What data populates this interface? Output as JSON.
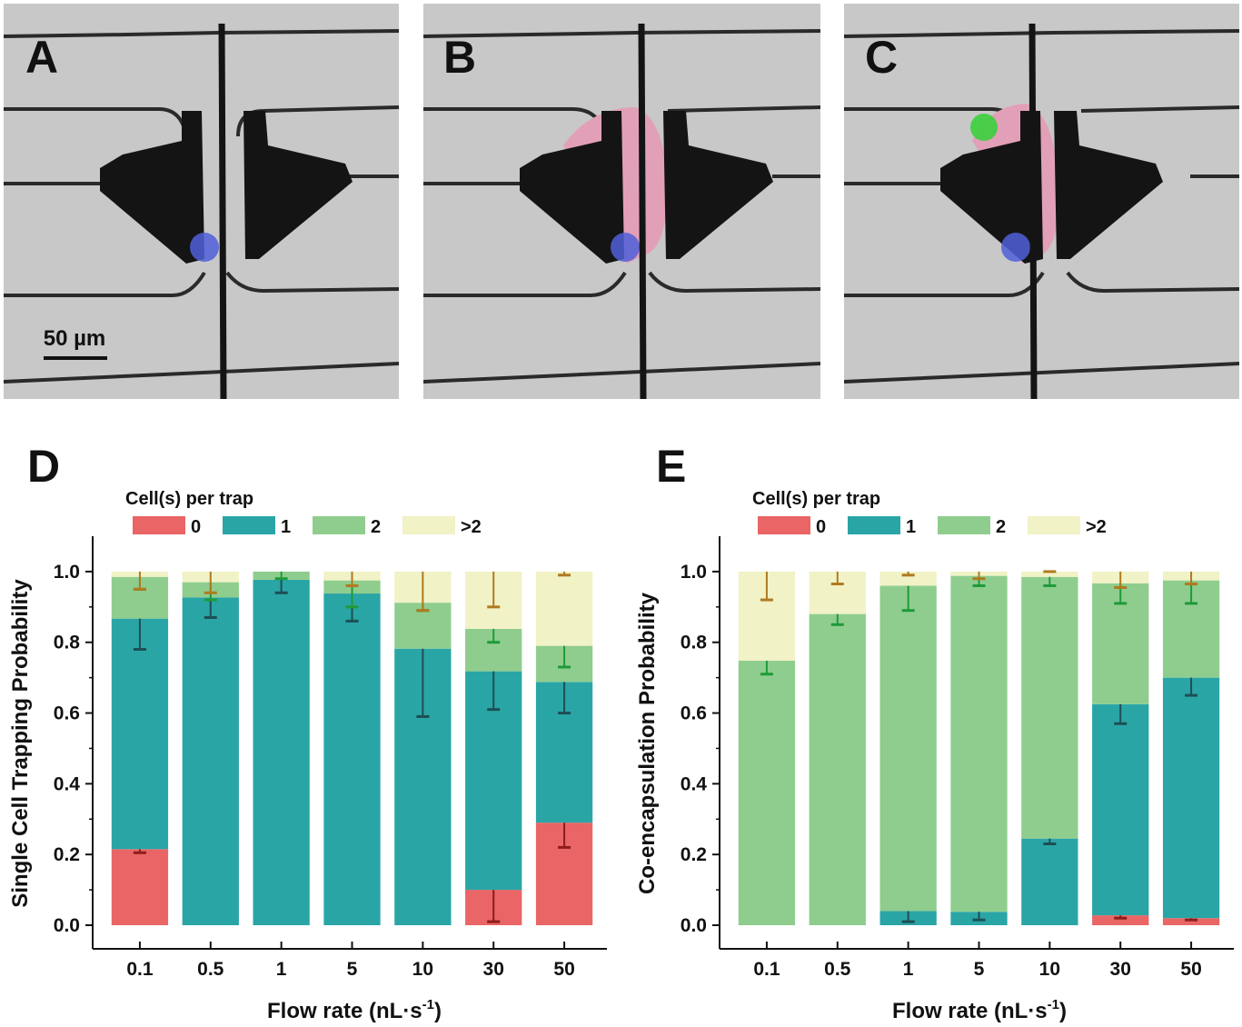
{
  "images": [
    {
      "letter": "A",
      "scale_bar_label": "50 µm"
    },
    {
      "letter": "B"
    },
    {
      "letter": "C"
    }
  ],
  "colors": {
    "c0": "#e96566",
    "c1": "#2aa5a6",
    "c2": "#8fcd8e",
    "c3": "#f1f2c6",
    "err0": "#8e1c1c",
    "err1": "#1d4f55",
    "err2": "#1f9a3a",
    "err3": "#b07a20",
    "micro_bg": "#c8c8c8",
    "micro_dark": "#141414",
    "pink": "#e2a0b8",
    "blue_cell": "#4f5fd8",
    "green_cell": "#3ccf3c"
  },
  "chart_data": [
    {
      "type": "bar",
      "stacked": true,
      "panel_letter": "D",
      "legend_title": "Cell(s) per trap",
      "categories": [
        "0.1",
        "0.5",
        "1",
        "5",
        "10",
        "30",
        "50"
      ],
      "xlabel": "Flow rate (nL·s",
      "xlabel_sup": "-1",
      "xlabel_end": ")",
      "ylabel": "Single Cell Trapping Probability",
      "ylim": [
        0,
        1.1
      ],
      "yticks": [
        "0.0",
        "0.2",
        "0.4",
        "0.6",
        "0.8",
        "1.0"
      ],
      "legend_position": "top",
      "series": [
        {
          "name": "0",
          "values": [
            0.215,
            0,
            0,
            0,
            0,
            0.1,
            0.29
          ],
          "err": [
            0.205,
            null,
            null,
            null,
            null,
            0.01,
            0.22
          ]
        },
        {
          "name": "1",
          "values": [
            0.652,
            0.927,
            0.977,
            0.938,
            0.782,
            0.618,
            0.398
          ],
          "err": [
            0.78,
            0.87,
            0.94,
            0.86,
            0.59,
            0.61,
            0.6
          ]
        },
        {
          "name": "2",
          "values": [
            0.118,
            0.043,
            0.023,
            0.037,
            0.13,
            0.12,
            0.102
          ],
          "err": [
            0.95,
            0.92,
            0.98,
            0.9,
            0.89,
            0.8,
            0.73
          ]
        },
        {
          "name": ">2",
          "values": [
            0.015,
            0.03,
            0,
            0.025,
            0.088,
            0.162,
            0.21
          ],
          "err": [
            0.95,
            0.94,
            null,
            0.96,
            0.89,
            0.9,
            0.99
          ]
        }
      ]
    },
    {
      "type": "bar",
      "stacked": true,
      "panel_letter": "E",
      "legend_title": "Cell(s) per trap",
      "categories": [
        "0.1",
        "0.5",
        "1",
        "5",
        "10",
        "30",
        "50"
      ],
      "xlabel": "Flow rate (nL·s",
      "xlabel_sup": "-1",
      "xlabel_end": ")",
      "ylabel": "Co-encapsulation Probability",
      "ylim": [
        0,
        1.1
      ],
      "yticks": [
        "0.0",
        "0.2",
        "0.4",
        "0.6",
        "0.8",
        "1.0"
      ],
      "legend_position": "top",
      "series": [
        {
          "name": "0",
          "values": [
            0,
            0,
            0,
            0,
            0,
            0.028,
            0.02
          ],
          "err": [
            null,
            null,
            null,
            null,
            null,
            0.02,
            0.015
          ]
        },
        {
          "name": "1",
          "values": [
            0,
            0,
            0.04,
            0.038,
            0.245,
            0.597,
            0.68
          ],
          "err": [
            null,
            null,
            0.01,
            0.015,
            0.23,
            0.57,
            0.65
          ]
        },
        {
          "name": "2",
          "values": [
            0.748,
            0.88,
            0.92,
            0.95,
            0.74,
            0.342,
            0.275
          ],
          "err": [
            0.71,
            0.85,
            0.89,
            0.96,
            0.96,
            0.91,
            0.91
          ]
        },
        {
          "name": ">2",
          "values": [
            0.252,
            0.12,
            0.04,
            0.012,
            0.015,
            0.033,
            0.025
          ],
          "err": [
            0.92,
            0.965,
            0.99,
            0.98,
            1.0,
            0.955,
            0.965
          ]
        }
      ]
    }
  ]
}
